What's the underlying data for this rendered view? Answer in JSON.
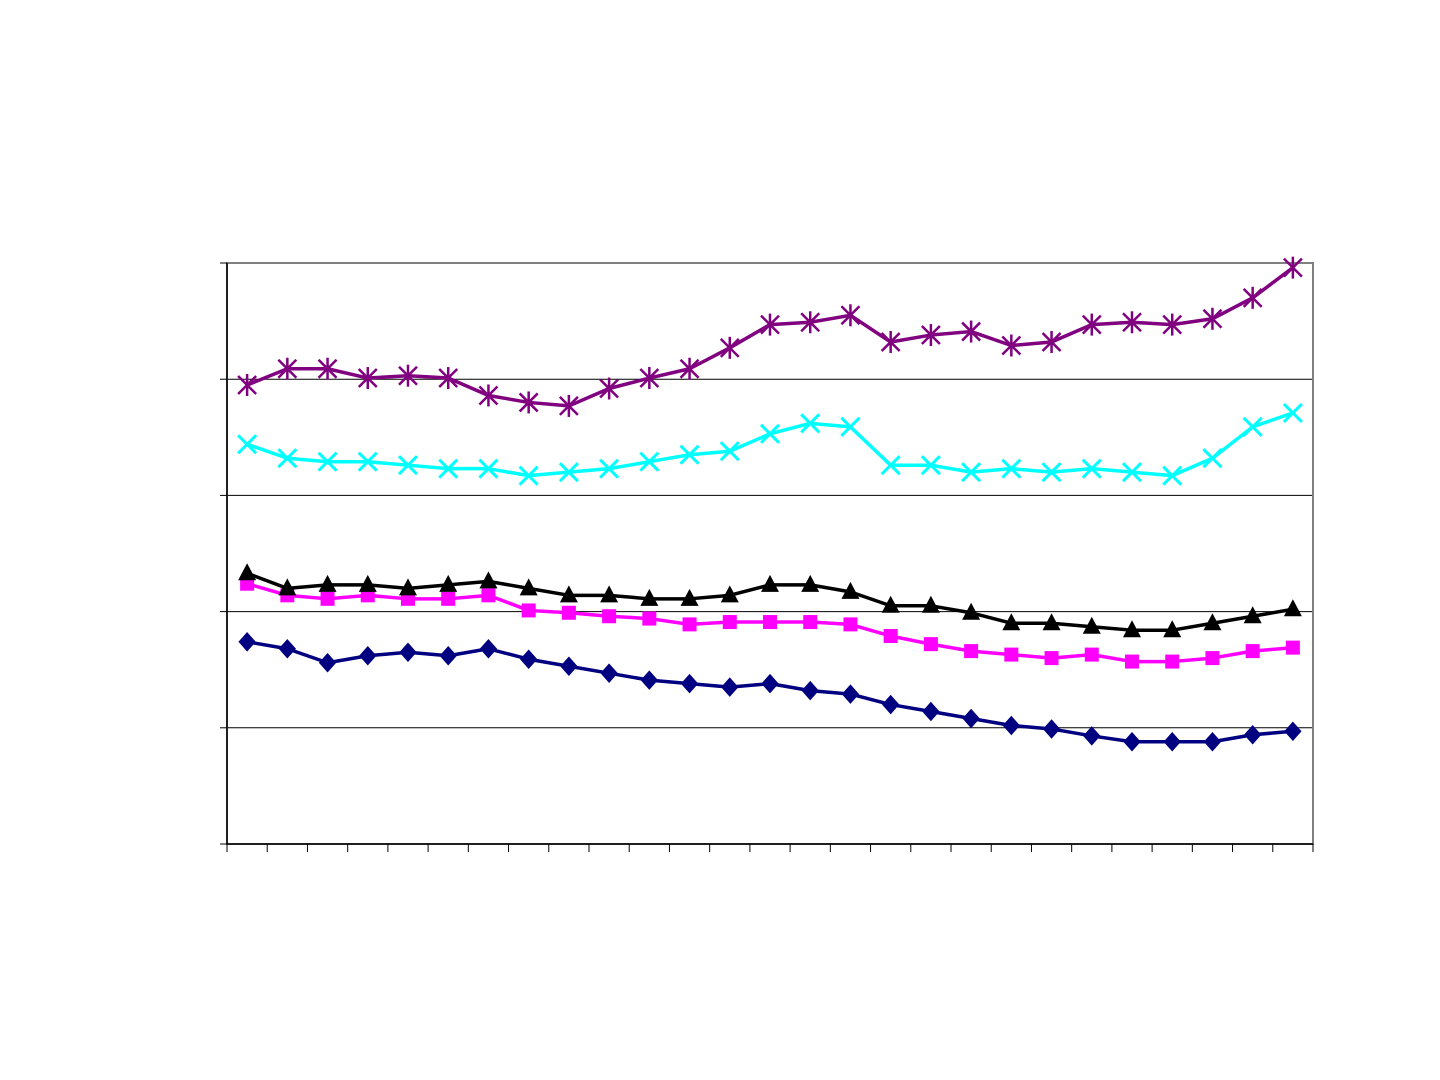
{
  "chart_data": {
    "type": "line",
    "title": "",
    "xlabel": "",
    "ylabel": "",
    "grid": true,
    "ylim": [
      0,
      5
    ],
    "x": [
      1,
      2,
      3,
      4,
      5,
      6,
      7,
      8,
      9,
      10,
      11,
      12,
      13,
      14,
      15,
      16,
      17,
      18,
      19,
      20,
      21,
      22,
      23,
      24,
      25,
      26,
      27
    ],
    "series": [
      {
        "marker": "diamond",
        "color": "#000080",
        "values": [
          1.74,
          1.68,
          1.56,
          1.62,
          1.65,
          1.62,
          1.68,
          1.59,
          1.53,
          1.47,
          1.41,
          1.38,
          1.35,
          1.38,
          1.32,
          1.29,
          1.2,
          1.14,
          1.08,
          1.02,
          0.99,
          0.93,
          0.88,
          0.88,
          0.88,
          0.94,
          0.97
        ]
      },
      {
        "marker": "square",
        "color": "#ff00ff",
        "values": [
          2.24,
          2.14,
          2.11,
          2.14,
          2.11,
          2.11,
          2.14,
          2.01,
          1.99,
          1.96,
          1.94,
          1.89,
          1.91,
          1.91,
          1.91,
          1.89,
          1.79,
          1.72,
          1.66,
          1.63,
          1.6,
          1.63,
          1.57,
          1.57,
          1.6,
          1.66,
          1.69
        ]
      },
      {
        "marker": "triangle",
        "color": "#000000",
        "values": [
          2.33,
          2.2,
          2.23,
          2.23,
          2.2,
          2.23,
          2.26,
          2.2,
          2.14,
          2.14,
          2.11,
          2.11,
          2.14,
          2.23,
          2.23,
          2.17,
          2.05,
          2.05,
          1.99,
          1.9,
          1.9,
          1.87,
          1.84,
          1.84,
          1.9,
          1.96,
          2.02
        ]
      },
      {
        "marker": "x",
        "color": "#00ffff",
        "values": [
          3.44,
          3.32,
          3.29,
          3.29,
          3.26,
          3.23,
          3.23,
          3.17,
          3.2,
          3.23,
          3.29,
          3.35,
          3.38,
          3.53,
          3.62,
          3.59,
          3.26,
          3.26,
          3.2,
          3.23,
          3.2,
          3.23,
          3.2,
          3.17,
          3.32,
          3.59,
          3.71
        ]
      },
      {
        "marker": "star",
        "color": "#800080",
        "values": [
          3.95,
          4.09,
          4.09,
          4.01,
          4.03,
          4.01,
          3.86,
          3.8,
          3.77,
          3.92,
          4.01,
          4.09,
          4.27,
          4.47,
          4.49,
          4.55,
          4.32,
          4.38,
          4.41,
          4.29,
          4.32,
          4.47,
          4.49,
          4.47,
          4.52,
          4.7,
          4.96
        ]
      }
    ]
  }
}
